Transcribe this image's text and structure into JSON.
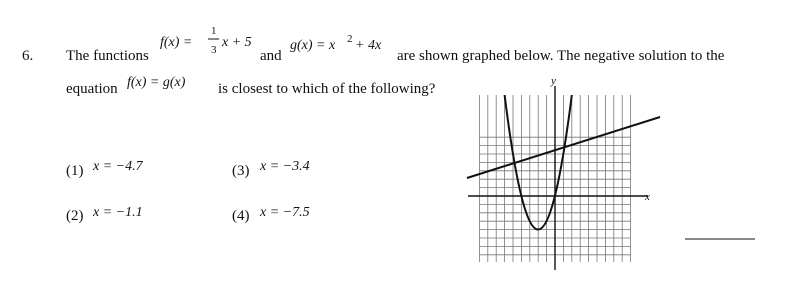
{
  "question": {
    "number": "6.",
    "intro": "The functions",
    "f": {
      "name": "f(x) =",
      "numerator": "1",
      "denominator": "3",
      "rest": "x + 5"
    },
    "and": "and",
    "g": {
      "name": "g(x) = x",
      "power": "2",
      "rest": "+ 4x"
    },
    "text1": "are shown graphed below. The negative solution to the",
    "equation_word": "equation",
    "equation": "f(x) = g(x)",
    "text2": "is closest to which of the following?",
    "choices": [
      {
        "label": "(1)",
        "answer": "x = −4.7"
      },
      {
        "label": "(2)",
        "answer": "x = −1.1"
      },
      {
        "label": "(3)",
        "answer": "x = −3.4"
      },
      {
        "label": "(4)",
        "answer": "x = −7.5"
      }
    ],
    "graph": {
      "y_label": "y",
      "x_label": "x"
    }
  }
}
